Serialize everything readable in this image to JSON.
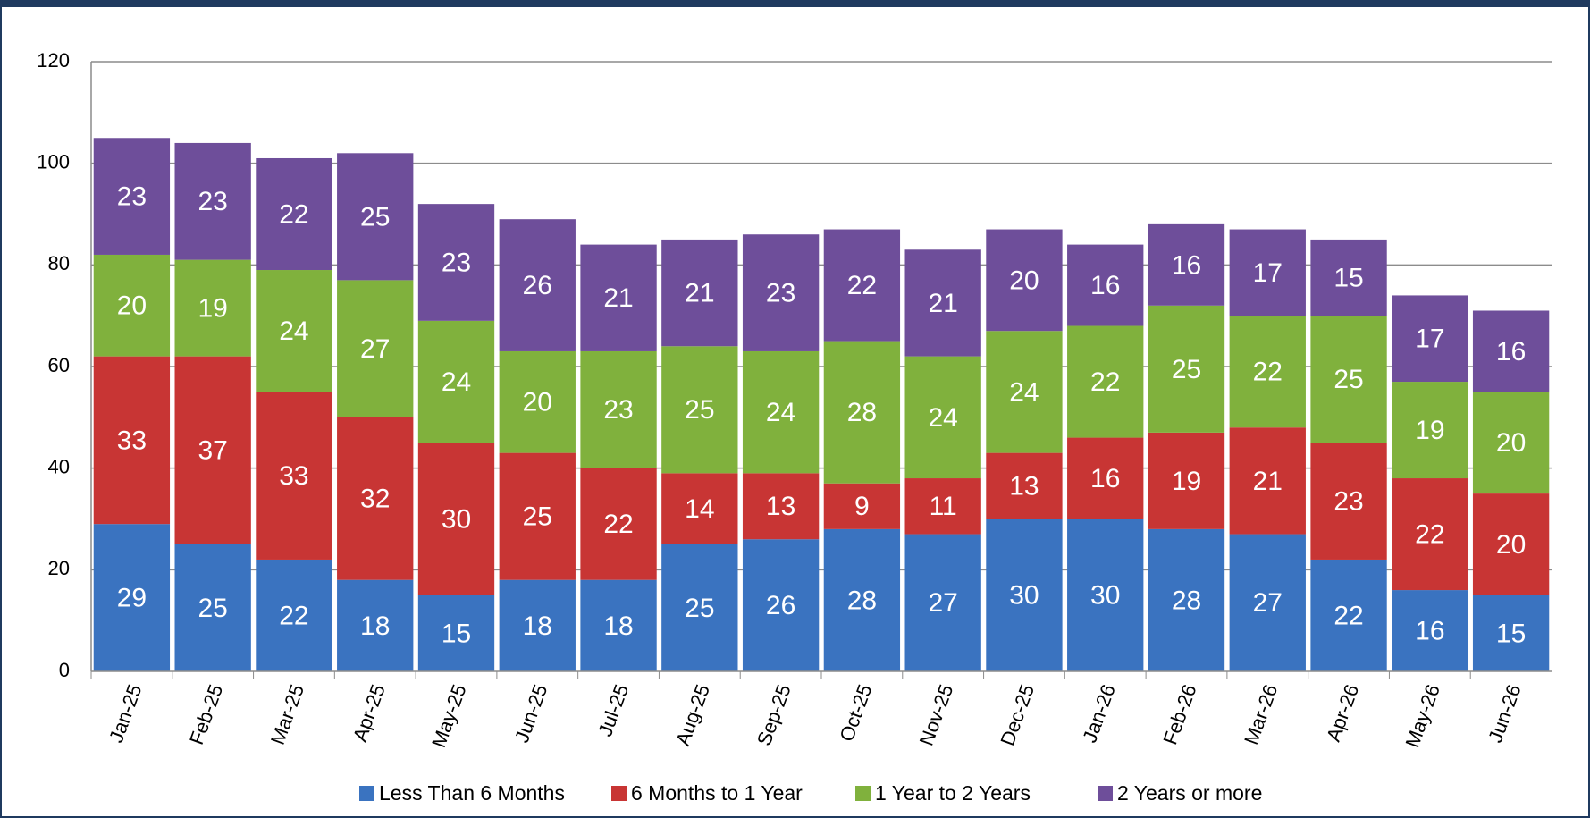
{
  "chart_data": {
    "type": "stacked-bar",
    "categories": [
      "Jan-25",
      "Feb-25",
      "Mar-25",
      "Apr-25",
      "May-25",
      "Jun-25",
      "Jul-25",
      "Aug-25",
      "Sep-25",
      "Oct-25",
      "Nov-25",
      "Dec-25",
      "Jan-26",
      "Feb-26",
      "Mar-26",
      "Apr-26",
      "May-26",
      "Jun-26"
    ],
    "series": [
      {
        "name": "Less Than 6 Months",
        "color": "#3a73c0",
        "values": [
          29,
          25,
          22,
          18,
          15,
          18,
          18,
          25,
          26,
          28,
          27,
          30,
          30,
          28,
          27,
          22,
          16,
          15
        ]
      },
      {
        "name": "6 Months to 1 Year",
        "color": "#c83534",
        "values": [
          33,
          37,
          33,
          32,
          30,
          25,
          22,
          14,
          13,
          9,
          11,
          13,
          16,
          19,
          21,
          23,
          22,
          20
        ]
      },
      {
        "name": "1 Year to 2 Years",
        "color": "#80b13d",
        "values": [
          20,
          19,
          24,
          27,
          24,
          20,
          23,
          25,
          24,
          28,
          24,
          24,
          22,
          25,
          22,
          25,
          19,
          20
        ]
      },
      {
        "name": "2 Years or more",
        "color": "#6e4e9a",
        "values": [
          23,
          23,
          22,
          25,
          23,
          26,
          21,
          21,
          23,
          22,
          21,
          20,
          16,
          16,
          17,
          15,
          17,
          16
        ]
      }
    ],
    "ylim": [
      0,
      120
    ],
    "yticks": [
      0,
      20,
      40,
      60,
      80,
      100,
      120
    ],
    "grid": true,
    "legend": "bottom"
  }
}
